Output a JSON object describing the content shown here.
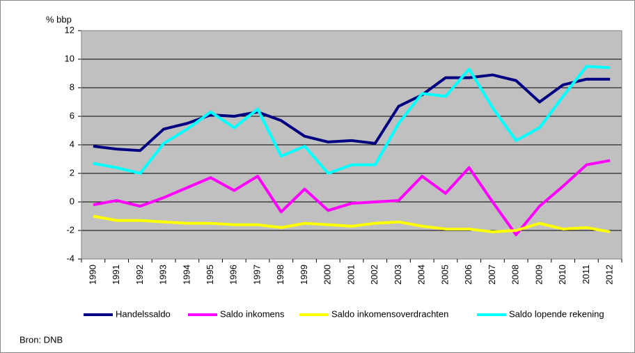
{
  "chart_data": {
    "type": "line",
    "y_label": "% bbp",
    "source": "Bron: DNB",
    "categories": [
      "1990",
      "1991",
      "1992",
      "1993",
      "1994",
      "1995",
      "1996",
      "1997",
      "1998",
      "1999",
      "2000",
      "2001",
      "2002",
      "2003",
      "2004",
      "2005",
      "2006",
      "2007",
      "2008",
      "2009",
      "2010",
      "2011",
      "2012"
    ],
    "series": [
      {
        "name": "Handelssaldo",
        "color": "#000080",
        "values": [
          3.9,
          3.7,
          3.6,
          5.1,
          5.5,
          6.1,
          6.0,
          6.3,
          5.7,
          4.6,
          4.2,
          4.3,
          4.1,
          6.7,
          7.5,
          8.7,
          8.7,
          8.9,
          8.5,
          7.0,
          8.2,
          8.6,
          8.6
        ]
      },
      {
        "name": "Saldo inkomens",
        "color": "#ff00ff",
        "values": [
          -0.2,
          0.1,
          -0.3,
          0.3,
          1.0,
          1.7,
          0.8,
          1.8,
          -0.7,
          0.9,
          -0.6,
          -0.1,
          0.0,
          0.1,
          1.8,
          0.6,
          2.4,
          0.0,
          -2.3,
          -0.3,
          1.1,
          2.6,
          2.9
        ]
      },
      {
        "name": "Saldo inkomensoverdrachten",
        "color": "#ffff00",
        "values": [
          -1.0,
          -1.3,
          -1.3,
          -1.4,
          -1.5,
          -1.5,
          -1.6,
          -1.6,
          -1.8,
          -1.5,
          -1.6,
          -1.7,
          -1.5,
          -1.4,
          -1.7,
          -1.9,
          -1.9,
          -2.1,
          -2.0,
          -1.5,
          -1.9,
          -1.8,
          -2.1
        ]
      },
      {
        "name": "Saldo lopende rekening",
        "color": "#00ffff",
        "values": [
          2.7,
          2.4,
          2.0,
          4.1,
          5.1,
          6.3,
          5.2,
          6.5,
          3.2,
          3.9,
          2.0,
          2.6,
          2.6,
          5.5,
          7.6,
          7.4,
          9.3,
          6.6,
          4.3,
          5.2,
          7.4,
          9.5,
          9.4
        ]
      }
    ],
    "ylim": [
      -4,
      12
    ],
    "yticks": [
      -4,
      -2,
      0,
      2,
      4,
      6,
      8,
      10,
      12
    ],
    "grid": true,
    "plot_background": "#c0c0c0",
    "legend": "bottom"
  }
}
